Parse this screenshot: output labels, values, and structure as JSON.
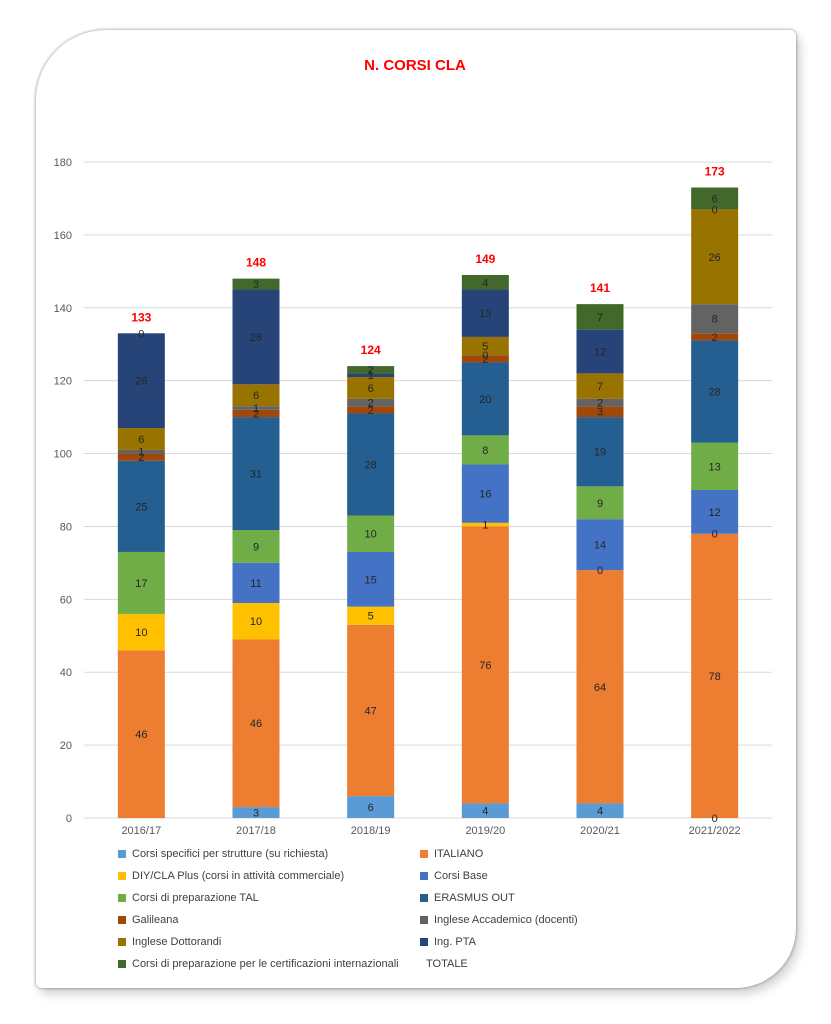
{
  "chart_data": {
    "type": "bar",
    "stacked": true,
    "title": "N. CORSI CLA",
    "ylim": [
      0,
      180
    ],
    "yticks": [
      0,
      20,
      40,
      60,
      80,
      100,
      120,
      140,
      160,
      180
    ],
    "grid": true,
    "legend_position": "bottom",
    "categories": [
      "2016/17",
      "2017/18",
      "2018/19",
      "2019/20",
      "2020/21",
      "2021/2022"
    ],
    "series": [
      {
        "name": "Corsi specifici per strutture (su richiesta)",
        "color": "#5b9bd5",
        "values": [
          0,
          3,
          6,
          4,
          4,
          0
        ],
        "labels": [
          null,
          "3",
          "6",
          "4",
          "4",
          "0"
        ]
      },
      {
        "name": "ITALIANO",
        "color": "#ed7d31",
        "values": [
          46,
          46,
          47,
          76,
          64,
          78
        ],
        "labels": [
          "46",
          "46",
          "47",
          "76",
          "64",
          "78"
        ]
      },
      {
        "name": "DIY/CLA Plus (corsi in attività commerciale)",
        "color": "#ffc000",
        "values": [
          10,
          10,
          5,
          1,
          0,
          0
        ],
        "labels": [
          "10",
          "10",
          "5",
          "1",
          "0",
          "0"
        ]
      },
      {
        "name": "Corsi Base",
        "color": "#4472c4",
        "values": [
          0,
          11,
          15,
          16,
          14,
          12
        ],
        "labels": [
          null,
          "11",
          "15",
          "16",
          "14",
          "12"
        ]
      },
      {
        "name": "Corsi di preparazione TAL",
        "color": "#70ad47",
        "values": [
          17,
          9,
          10,
          8,
          9,
          13
        ],
        "labels": [
          "17",
          "9",
          "10",
          "8",
          "9",
          "13"
        ]
      },
      {
        "name": "ERASMUS OUT",
        "color": "#255e91",
        "values": [
          25,
          31,
          28,
          20,
          19,
          28
        ],
        "labels": [
          "25",
          "31",
          "28",
          "20",
          "19",
          "28"
        ]
      },
      {
        "name": "Galileana",
        "color": "#9e480e",
        "values": [
          2,
          2,
          2,
          2,
          3,
          2
        ],
        "labels": [
          "2",
          "2",
          "2",
          "2",
          "3",
          "2"
        ]
      },
      {
        "name": "Inglese Accademico (docenti)",
        "color": "#636363",
        "values": [
          1,
          1,
          2,
          0,
          2,
          8
        ],
        "labels": [
          "1",
          "1",
          "2",
          "0",
          "2",
          "8"
        ]
      },
      {
        "name": "Inglese Dottorandi",
        "color": "#997300",
        "values": [
          6,
          6,
          6,
          5,
          7,
          26
        ],
        "labels": [
          "6",
          "6",
          "6",
          "5",
          "7",
          "26"
        ]
      },
      {
        "name": "Ing. PTA",
        "color": "#264478",
        "values": [
          26,
          26,
          1,
          13,
          12,
          0
        ],
        "labels": [
          "26",
          "26",
          "1",
          "13",
          "12",
          "0"
        ]
      },
      {
        "name": "Corsi di preparazione per le certificazioni internazionali",
        "color": "#43682b",
        "values": [
          0,
          3,
          2,
          4,
          7,
          6
        ],
        "labels": [
          "0",
          "3",
          "2",
          "4",
          "7",
          "6"
        ]
      }
    ],
    "totals": {
      "name": "TOTALE",
      "values": [
        133,
        148,
        124,
        149,
        141,
        173
      ],
      "color": "#ff0000"
    }
  }
}
